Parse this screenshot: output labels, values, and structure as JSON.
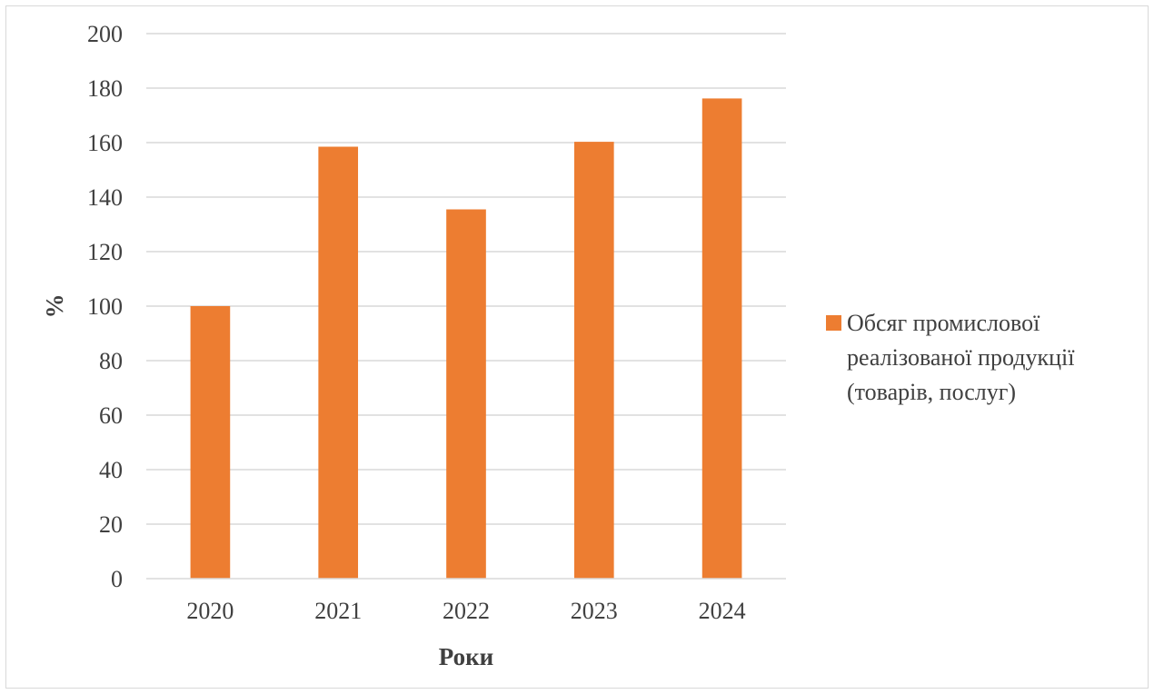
{
  "chart_data": {
    "type": "bar",
    "categories": [
      "2020",
      "2021",
      "2022",
      "2023",
      "2024"
    ],
    "series": [
      {
        "name": "Обсяг промислової реалізованої продукції (товарів, послуг)",
        "values": [
          100,
          158.5,
          135.5,
          160.3,
          176.2
        ],
        "color": "#ed7d31"
      }
    ],
    "title": "",
    "xlabel": "Роки",
    "ylabel": "%",
    "ylim": [
      0,
      200
    ],
    "yticks": [
      "0",
      "20",
      "40",
      "60",
      "80",
      "100",
      "120",
      "140",
      "160",
      "180",
      "200"
    ],
    "grid": true,
    "legend_position": "right",
    "legend_lines": [
      "Обсяг промислової",
      "реалізованої продукції",
      "(товарів, послуг)"
    ],
    "colors": {
      "bar": "#ed7d31",
      "grid": "#d9d9d9",
      "text": "#404040",
      "border": "#d9d9d9"
    }
  }
}
